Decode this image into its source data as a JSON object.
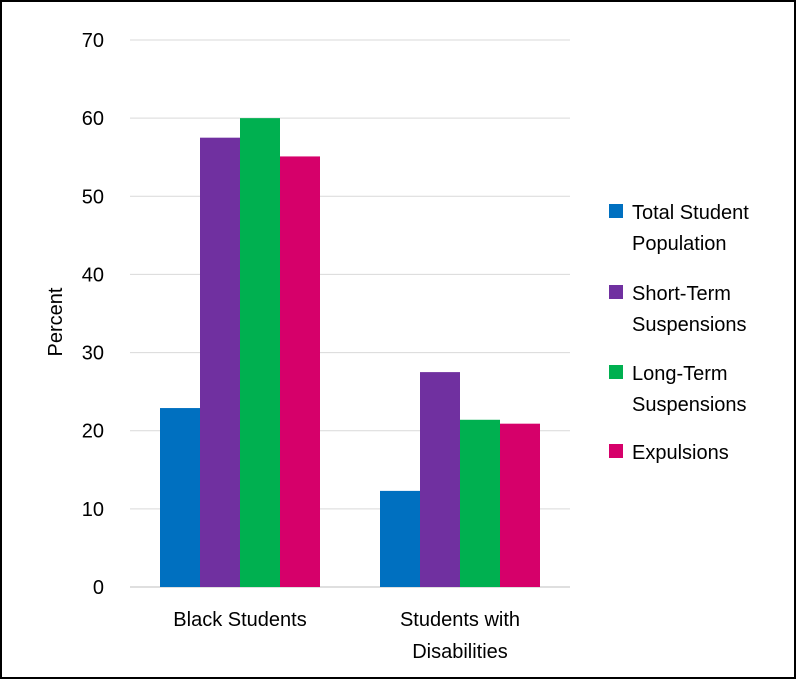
{
  "chart_data": {
    "type": "bar",
    "title": "",
    "ylabel": "Percent",
    "xlabel": "",
    "ylim": [
      0,
      70
    ],
    "yticks": [
      0,
      10,
      20,
      30,
      40,
      50,
      60,
      70
    ],
    "grid": true,
    "legend_position": "right",
    "categories": [
      [
        "Black Students"
      ],
      [
        "Students with",
        "Disabilities"
      ]
    ],
    "series": [
      {
        "name": [
          "Total Student",
          "Population"
        ],
        "color": "#0070C0",
        "values": [
          22.9,
          12.3
        ]
      },
      {
        "name": [
          "Short-Term",
          "Suspensions"
        ],
        "color": "#7030A0",
        "values": [
          57.5,
          27.5
        ]
      },
      {
        "name": [
          "Long-Term",
          "Suspensions"
        ],
        "color": "#00B050",
        "values": [
          60,
          21.4
        ]
      },
      {
        "name": [
          "Expulsions"
        ],
        "color": "#D6006A",
        "values": [
          55.1,
          20.9
        ]
      }
    ]
  }
}
